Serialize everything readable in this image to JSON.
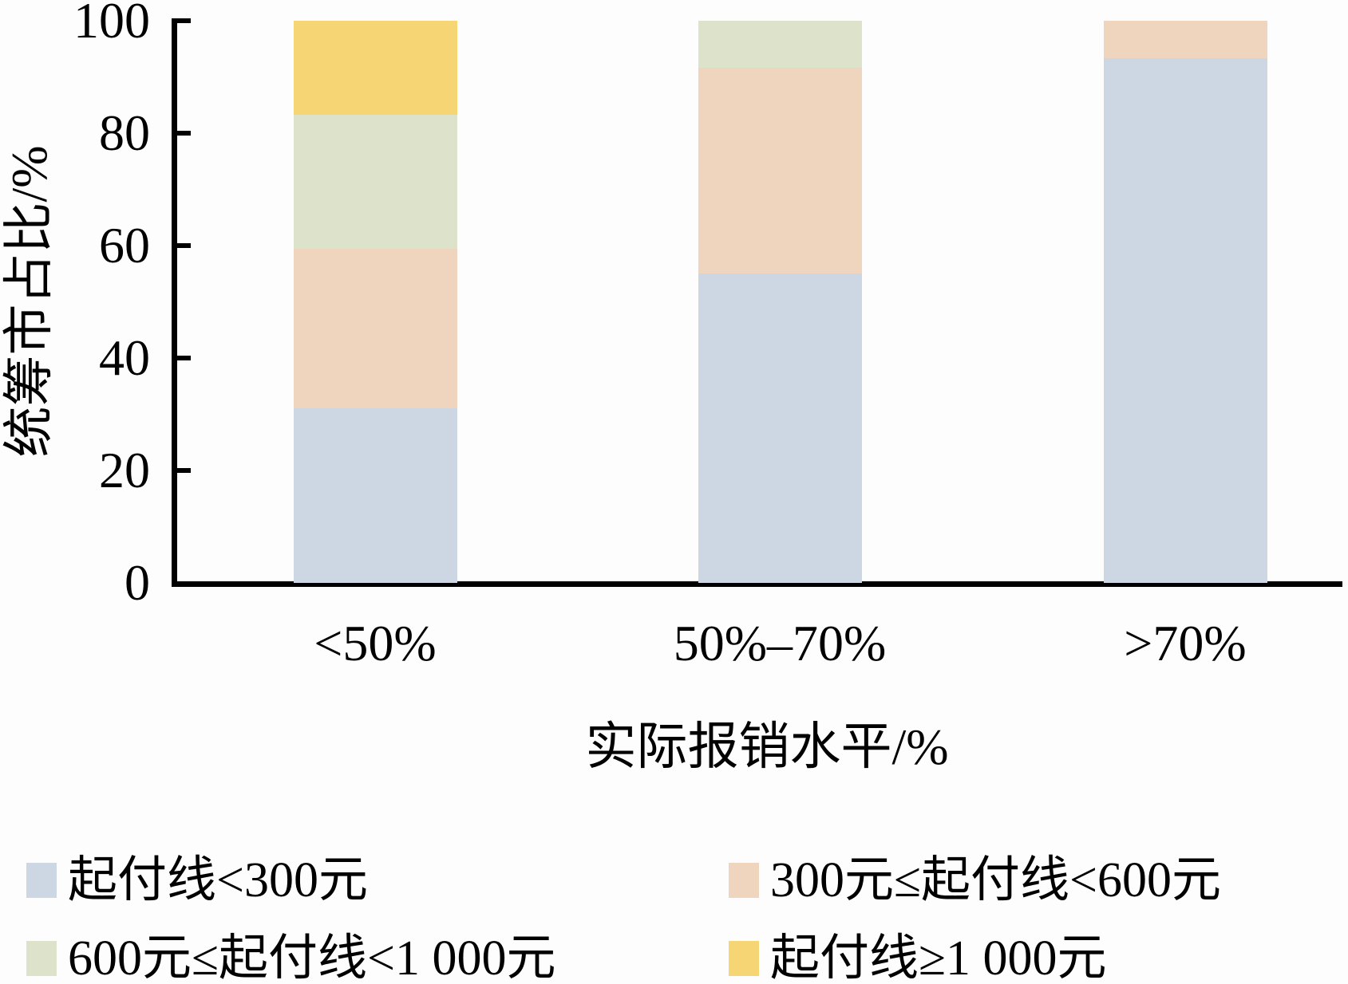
{
  "chart_data": {
    "type": "bar",
    "stacked": true,
    "percent_stacked": true,
    "title": "",
    "xlabel": "实际报销水平/%",
    "ylabel": "统筹市占比/%",
    "categories": [
      "<50%",
      "50%–70%",
      ">70%"
    ],
    "series": [
      {
        "name": "起付线<300元",
        "color": "#ccd7e3",
        "values": [
          31.0,
          55.0,
          93.3
        ]
      },
      {
        "name": "300元≤起付线<600元",
        "color": "#f0d5be",
        "values": [
          28.5,
          36.7,
          6.7
        ]
      },
      {
        "name": "600元≤起付线<1 000元",
        "color": "#dde3cb",
        "values": [
          23.8,
          8.3,
          0
        ]
      },
      {
        "name": "起付线≥1 000元",
        "color": "#f6d674",
        "values": [
          16.7,
          0,
          0
        ]
      }
    ],
    "ylim": [
      0,
      100
    ],
    "yticks": [
      0,
      20,
      40,
      60,
      80,
      100
    ],
    "grid": false,
    "legend_position": "bottom",
    "axis_color": "#000000",
    "background_color": "#fdfdfe"
  }
}
